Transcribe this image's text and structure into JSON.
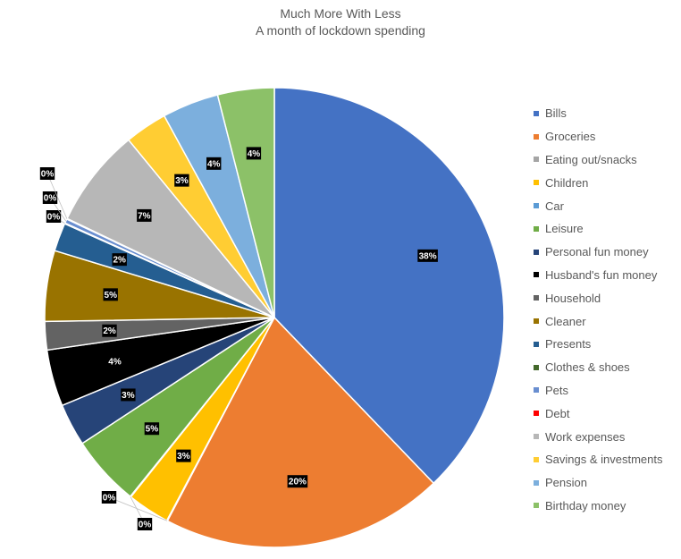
{
  "chart_data": {
    "type": "pie",
    "title": "Much More With Less",
    "subtitle": "A month of lockdown spending",
    "legend_position": "right",
    "slices": [
      {
        "name": "Bills",
        "value": 38,
        "label": "38%",
        "color": "#4472C4"
      },
      {
        "name": "Groceries",
        "value": 20,
        "label": "20%",
        "color": "#ED7D31"
      },
      {
        "name": "Eating out/snacks",
        "value": 0.05,
        "label": "0%",
        "color": "#A5A5A5"
      },
      {
        "name": "Children",
        "value": 3,
        "label": "3%",
        "color": "#FFC000"
      },
      {
        "name": "Car",
        "value": 0.05,
        "label": "0%",
        "color": "#5B9BD5"
      },
      {
        "name": "Leisure",
        "value": 5,
        "label": "5%",
        "color": "#70AD47"
      },
      {
        "name": "Personal fun money",
        "value": 3,
        "label": "3%",
        "color": "#264478"
      },
      {
        "name": "Husband's fun money",
        "value": 4,
        "label": "4%",
        "color": "#000000"
      },
      {
        "name": "Household",
        "value": 2,
        "label": "2%",
        "color": "#636363"
      },
      {
        "name": "Cleaner",
        "value": 5,
        "label": "5%",
        "color": "#997300"
      },
      {
        "name": "Presents",
        "value": 2,
        "label": "2%",
        "color": "#255E91"
      },
      {
        "name": "Clothes & shoes",
        "value": 0.05,
        "label": "0%",
        "color": "#43682B"
      },
      {
        "name": "Pets",
        "value": 0.3,
        "label": "0%",
        "color": "#698ED0"
      },
      {
        "name": "Debt",
        "value": 0.05,
        "label": "0%",
        "color": "#F1975A"
      },
      {
        "name": "Work expenses",
        "value": 7,
        "label": "7%",
        "color": "#B7B7B7"
      },
      {
        "name": "Savings & investments",
        "value": 3,
        "label": "3%",
        "color": "#FFCD33"
      },
      {
        "name": "Pension",
        "value": 4,
        "label": "4%",
        "color": "#7CAFDD"
      },
      {
        "name": "Birthday money",
        "value": 4,
        "label": "4%",
        "color": "#8CC168"
      }
    ],
    "legend_colors": [
      "#4472C4",
      "#ED7D31",
      "#A5A5A5",
      "#FFC000",
      "#5B9BD5",
      "#70AD47",
      "#264478",
      "#000000",
      "#636363",
      "#997300",
      "#255E91",
      "#43682B",
      "#698ED0",
      "#FF0000",
      "#B7B7B7",
      "#FFCD33",
      "#7CAFDD",
      "#8CC168"
    ]
  }
}
